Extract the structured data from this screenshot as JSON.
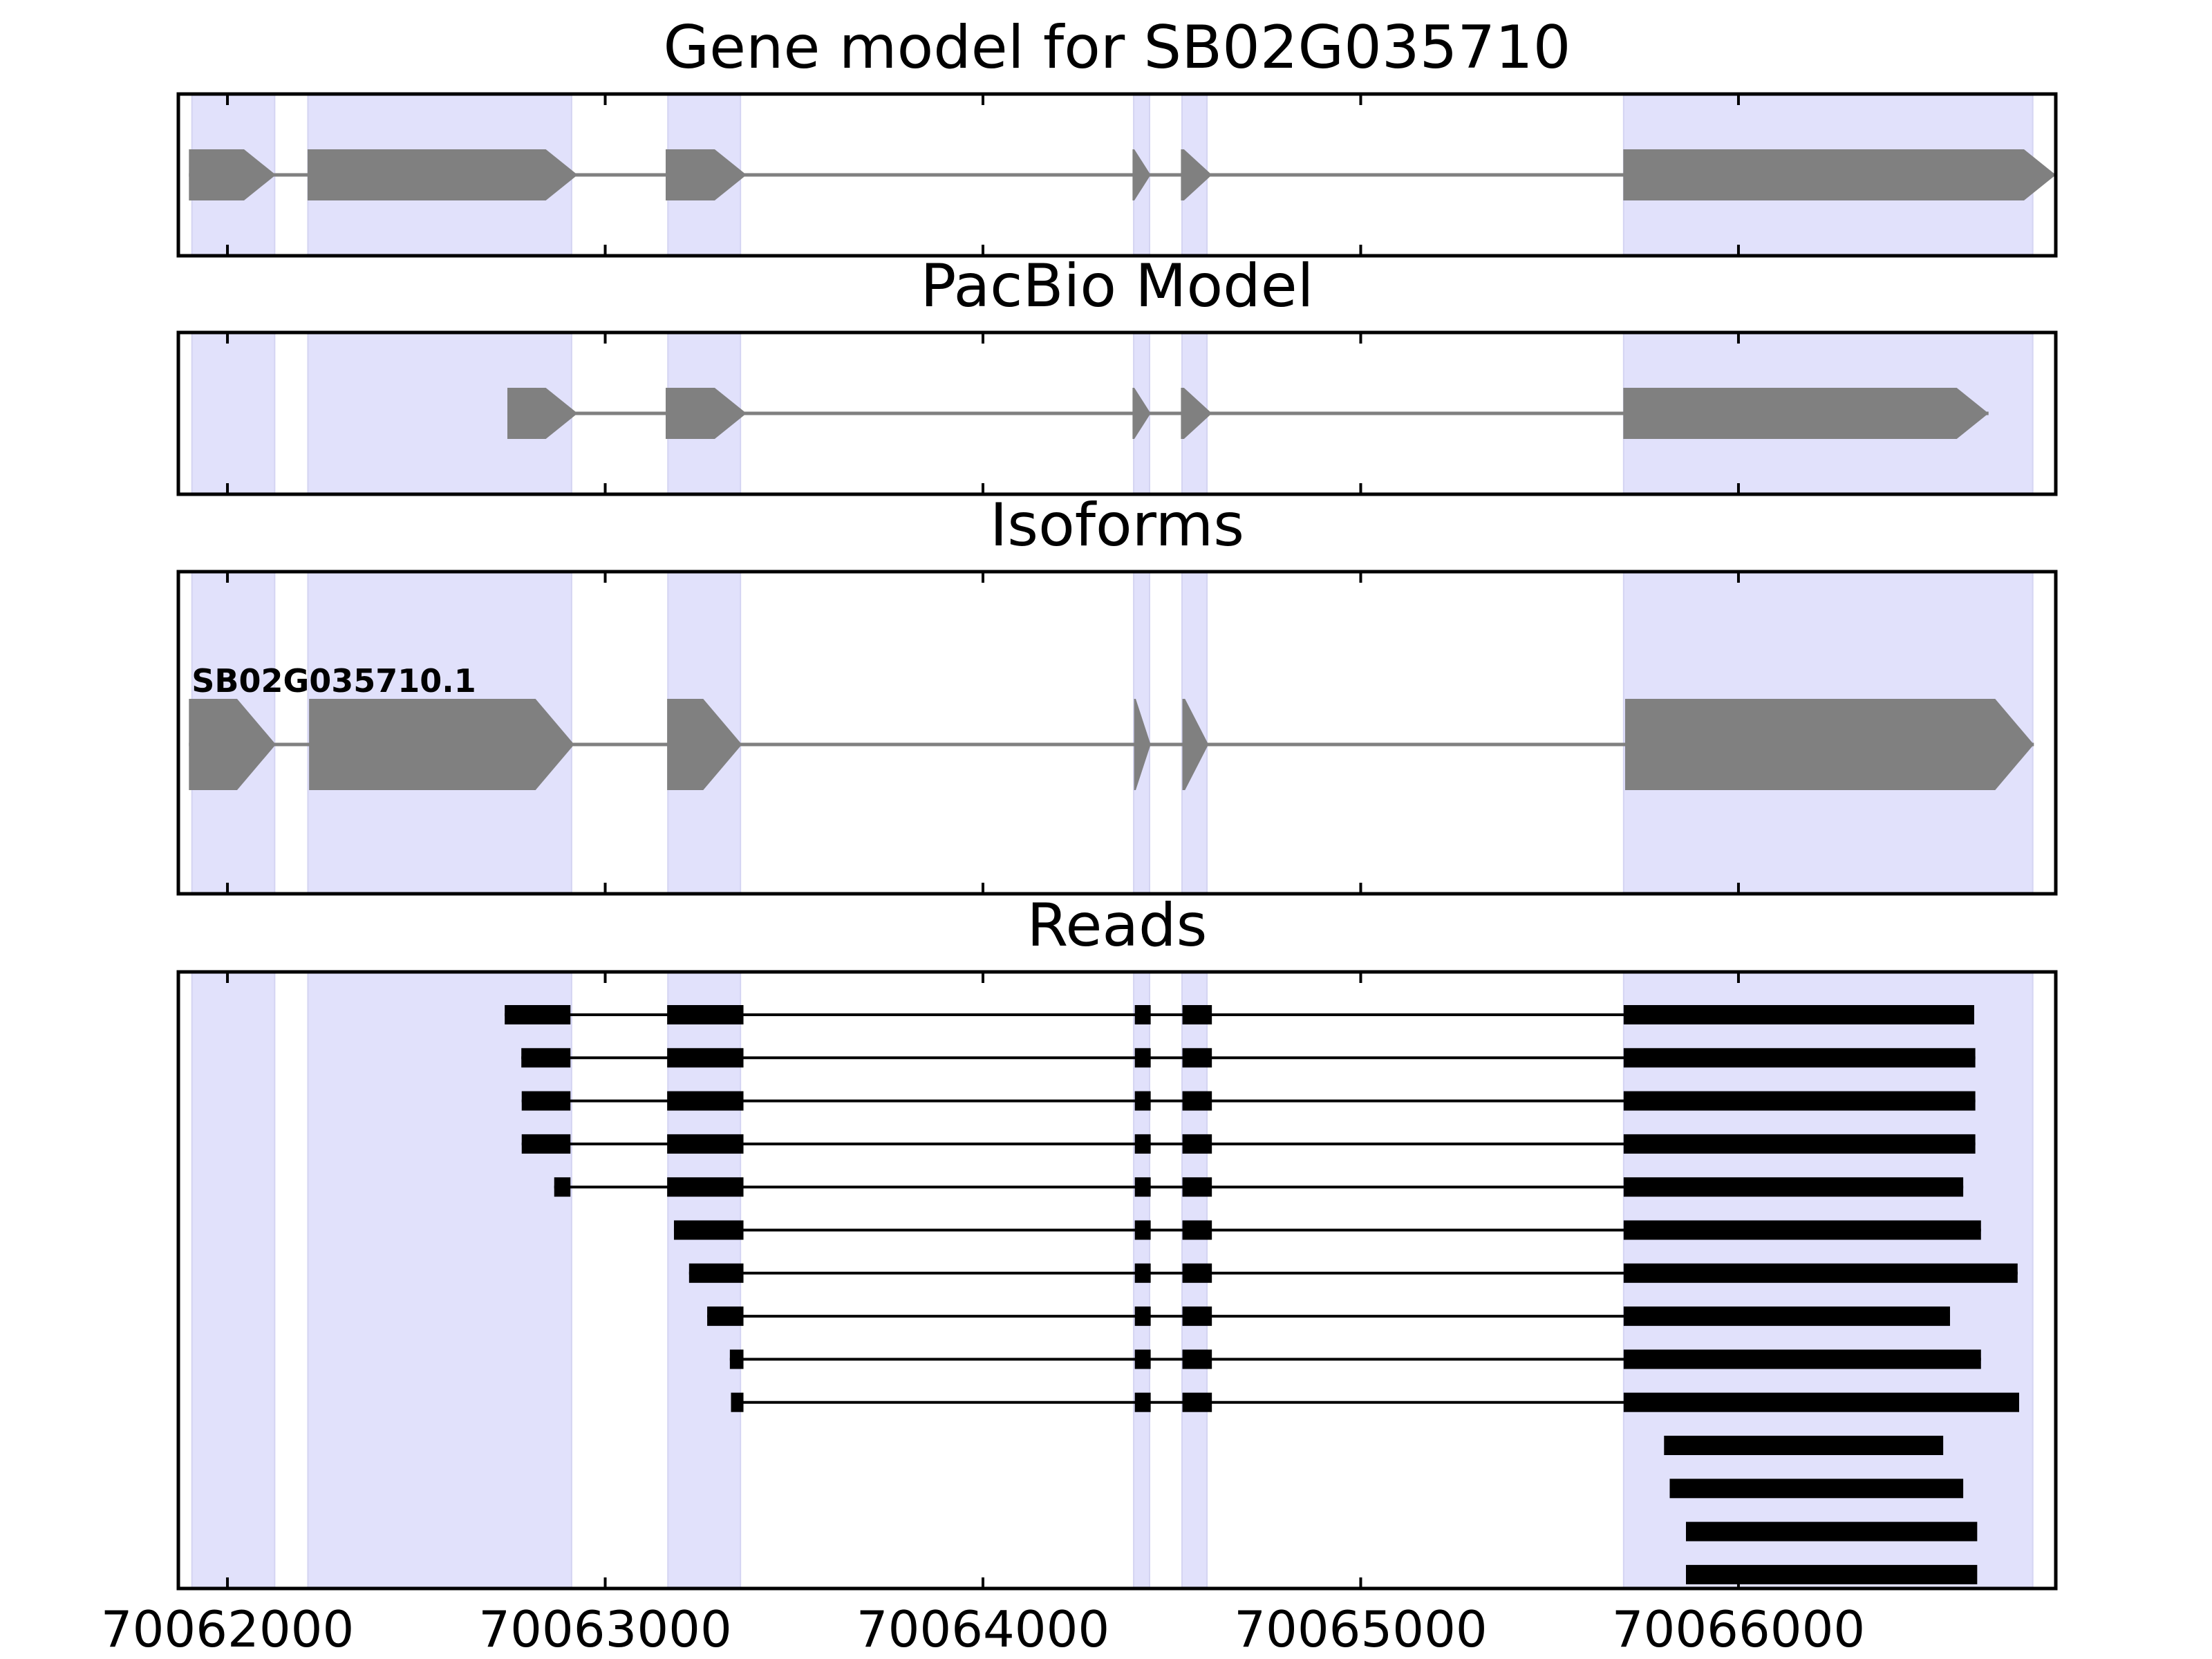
{
  "colors": {
    "exon_highlight": "#e1e1fb",
    "model_feature": "#808080",
    "read": "#000000",
    "frame": "#000000"
  },
  "chart_data": {
    "type": "gene-model-track",
    "xlim": [
      70061870,
      70066840
    ],
    "x_ticks": [
      70062000,
      70063000,
      70064000,
      70065000,
      70066000
    ],
    "x_tick_labels": [
      "70062000",
      "70063000",
      "70064000",
      "70065000",
      "70066000"
    ],
    "grid": false,
    "exon_regions": [
      [
        70061906,
        70062125
      ],
      [
        70062213,
        70062911
      ],
      [
        70063166,
        70063358
      ],
      [
        70064399,
        70064441
      ],
      [
        70064527,
        70064593
      ],
      [
        70065696,
        70066779
      ]
    ],
    "panels": [
      {
        "title": "Gene model for SB02G035710",
        "kind": "gene",
        "strand": "+",
        "exons": [
          [
            70061898,
            70062128
          ],
          [
            70062212,
            70062927
          ],
          [
            70063160,
            70063374
          ],
          [
            70064396,
            70064444
          ],
          [
            70064524,
            70064606
          ],
          [
            70065695,
            70066840
          ]
        ]
      },
      {
        "title": "PacBio Model",
        "kind": "gene",
        "strand": "+",
        "exons": [
          [
            70062741,
            70062927
          ],
          [
            70063160,
            70063374
          ],
          [
            70064396,
            70064444
          ],
          [
            70064524,
            70064606
          ],
          [
            70065695,
            70066662
          ]
        ]
      },
      {
        "title": "Isoforms",
        "kind": "isoforms",
        "isoforms": [
          {
            "name": "SB02G035710.1",
            "strand": "+",
            "exons": [
              [
                70061898,
                70062128
              ],
              [
                70062216,
                70062918
              ],
              [
                70063164,
                70063362
              ],
              [
                70064400,
                70064444
              ],
              [
                70064528,
                70064597
              ],
              [
                70065700,
                70066782
              ]
            ]
          }
        ]
      },
      {
        "title": "Reads",
        "kind": "reads",
        "reads": [
          [
            [
              70062734,
              70062908
            ],
            [
              70063164,
              70063366
            ],
            [
              70064402,
              70064444
            ],
            [
              70064528,
              70064606
            ],
            [
              70065696,
              70066624
            ]
          ],
          [
            [
              70062778,
              70062908
            ],
            [
              70063164,
              70063366
            ],
            [
              70064402,
              70064444
            ],
            [
              70064528,
              70064606
            ],
            [
              70065696,
              70066627
            ]
          ],
          [
            [
              70062779,
              70062908
            ],
            [
              70063164,
              70063366
            ],
            [
              70064402,
              70064444
            ],
            [
              70064528,
              70064606
            ],
            [
              70065696,
              70066627
            ]
          ],
          [
            [
              70062779,
              70062908
            ],
            [
              70063164,
              70063366
            ],
            [
              70064402,
              70064444
            ],
            [
              70064528,
              70064606
            ],
            [
              70065696,
              70066627
            ]
          ],
          [
            [
              70062865,
              70062908
            ],
            [
              70063164,
              70063366
            ],
            [
              70064402,
              70064444
            ],
            [
              70064528,
              70064606
            ],
            [
              70065696,
              70066595
            ]
          ],
          [
            [
              70063182,
              70063366
            ],
            [
              70064402,
              70064444
            ],
            [
              70064528,
              70064606
            ],
            [
              70065696,
              70066642
            ]
          ],
          [
            [
              70063222,
              70063366
            ],
            [
              70064402,
              70064444
            ],
            [
              70064528,
              70064606
            ],
            [
              70065696,
              70066739
            ]
          ],
          [
            [
              70063270,
              70063366
            ],
            [
              70064402,
              70064444
            ],
            [
              70064528,
              70064606
            ],
            [
              70065696,
              70066560
            ]
          ],
          [
            [
              70063330,
              70063366
            ],
            [
              70064402,
              70064444
            ],
            [
              70064528,
              70064606
            ],
            [
              70065696,
              70066642
            ]
          ],
          [
            [
              70063333,
              70063366
            ],
            [
              70064402,
              70064444
            ],
            [
              70064528,
              70064606
            ],
            [
              70065696,
              70066743
            ]
          ],
          [
            [
              70065803,
              70066542
            ]
          ],
          [
            [
              70065818,
              70066595
            ]
          ],
          [
            [
              70065861,
              70066632
            ]
          ],
          [
            [
              70065861,
              70066632
            ]
          ]
        ]
      }
    ]
  }
}
